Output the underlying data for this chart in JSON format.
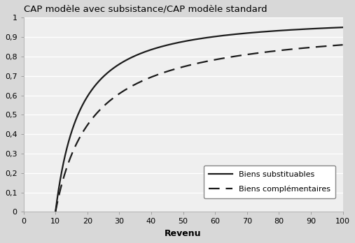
{
  "title": "CAP modèle avec subsistance/CAP modèle standard",
  "xlabel": "Revenu",
  "ylabel": "",
  "xlim": [
    0,
    100
  ],
  "ylim": [
    0,
    1
  ],
  "xticks": [
    0,
    10,
    20,
    30,
    40,
    50,
    60,
    70,
    80,
    90,
    100
  ],
  "yticks": [
    0,
    0.1,
    0.2,
    0.3,
    0.4,
    0.5,
    0.6,
    0.7,
    0.8,
    0.9,
    1
  ],
  "subsistence": 10,
  "alpha_sub": 1.301,
  "alpha_comp": 0.854,
  "line_color": "#1a1a1a",
  "background_color": "#d8d8d8",
  "plot_bg_color": "#efefef",
  "legend_solid": "Biens substituables",
  "legend_dashed": "Biens complémentaires",
  "title_fontsize": 9.5,
  "label_fontsize": 9,
  "tick_fontsize": 8,
  "legend_fontsize": 8
}
